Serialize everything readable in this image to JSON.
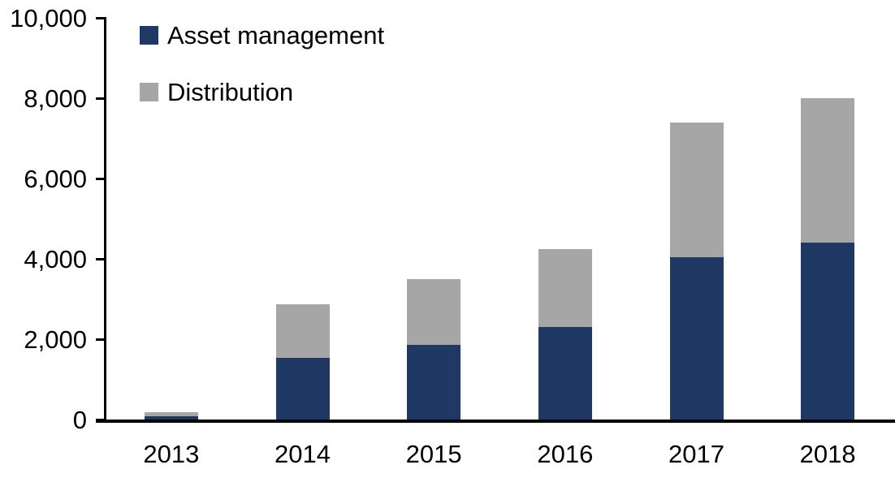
{
  "chart_data": {
    "type": "bar",
    "stacked": true,
    "title": "",
    "xlabel": "",
    "ylabel": "",
    "categories": [
      "2013",
      "2014",
      "2015",
      "2016",
      "2017",
      "2018"
    ],
    "series": [
      {
        "name": "Asset management",
        "color": "#1F3864",
        "values": [
          80,
          1530,
          1850,
          2300,
          4050,
          4400
        ]
      },
      {
        "name": "Distribution",
        "color": "#A6A6A6",
        "values": [
          100,
          1330,
          1650,
          1950,
          3350,
          3600
        ]
      }
    ],
    "totals": [
      180,
      2860,
      3500,
      4250,
      7400,
      8000
    ],
    "ylim": [
      0,
      10000
    ],
    "yticks": [
      0,
      2000,
      4000,
      6000,
      8000,
      10000
    ],
    "ytick_labels": [
      "0",
      "2,000",
      "4,000",
      "6,000",
      "8,000",
      "10,000"
    ],
    "grid": false,
    "legend_position": "top-left-inside",
    "axis_color": "#000000",
    "text_color": "#000000",
    "background_color": "#FFFFFF"
  }
}
